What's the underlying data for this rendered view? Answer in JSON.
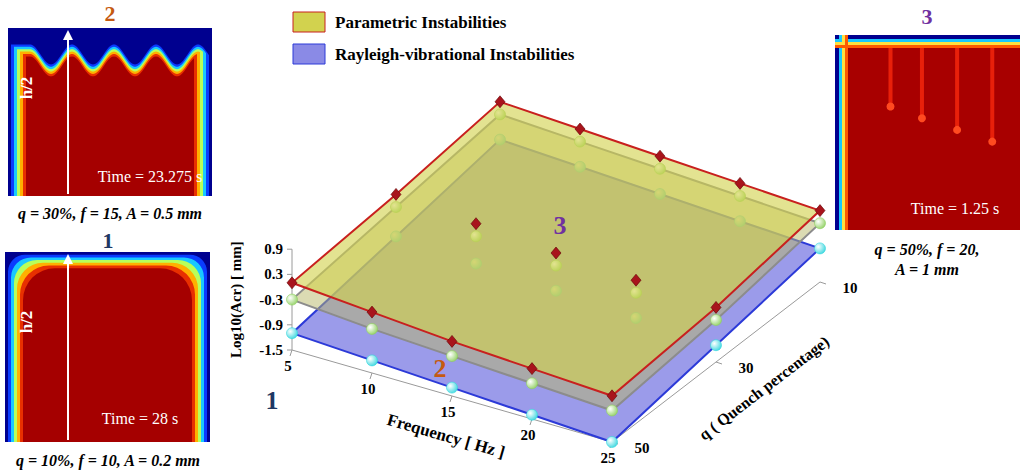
{
  "chart_data": {
    "type": "surface3d",
    "x_label": "Frequency [ Hz ]",
    "y_label": "q ( Quench percentage)",
    "z_label": "Log10(Acr) [ mm]",
    "xlim": [
      5,
      25
    ],
    "xticks": [
      5,
      10,
      15,
      20,
      25
    ],
    "ylim": [
      10,
      50
    ],
    "yticks": [
      10,
      30,
      50
    ],
    "zlim": [
      -1.5,
      0.9
    ],
    "zticks": [
      -1.5,
      -0.9,
      -0.3,
      0.3,
      0.9
    ],
    "x": [
      5,
      10,
      15,
      20,
      25
    ],
    "y": [
      10,
      30,
      50
    ],
    "legend": "top",
    "series": [
      {
        "name": "Parametric Instabilities",
        "color": "#d2d24e",
        "marker": "diamond",
        "values": [
          [
            0.6,
            0.5,
            0.4,
            0.3,
            0.2
          ],
          [
            0.3,
            0.15,
            0.0,
            -0.1,
            -0.2
          ],
          [
            0.1,
            -0.05,
            -0.2,
            -0.3,
            -0.4
          ]
        ]
      },
      {
        "color": "#b8b868",
        "marker": "circle",
        "values": [
          [
            0.3,
            0.2,
            0.1,
            0.0,
            -0.1
          ],
          [
            0.0,
            -0.15,
            -0.3,
            -0.4,
            -0.5
          ],
          [
            -0.3,
            -0.45,
            -0.55,
            -0.65,
            -0.75
          ]
        ]
      },
      {
        "name": "Rayleigh-vibrational Instabilities",
        "color": "#8a8ae6",
        "marker": "circle",
        "values": [
          [
            -0.3,
            -0.4,
            -0.5,
            -0.6,
            -0.7
          ],
          [
            -0.7,
            -0.8,
            -0.9,
            -1.0,
            -1.1
          ],
          [
            -1.1,
            -1.2,
            -1.3,
            -1.4,
            -1.5
          ]
        ]
      }
    ],
    "annotations": [
      {
        "text": "1",
        "color": "#1f3864"
      },
      {
        "text": "2",
        "color": "#c55a11"
      },
      {
        "text": "3",
        "color": "#7030a0"
      }
    ]
  },
  "panels": [
    {
      "label": "2",
      "color": "#c55a11",
      "time": "Time = 23.275 s",
      "height_mark": "h/2",
      "caption": [
        "q = 30%, f = 15, A = 0.5 mm"
      ]
    },
    {
      "label": "1",
      "color": "#1f3864",
      "time": "Time = 28 s",
      "height_mark": "h/2",
      "caption": [
        "q = 10%, f = 10, A = 0.2 mm"
      ]
    },
    {
      "label": "3",
      "color": "#7030a0",
      "time": "Time = 1.25 s",
      "caption": [
        "q = 50%, f = 20,",
        "A = 1 mm"
      ]
    }
  ]
}
